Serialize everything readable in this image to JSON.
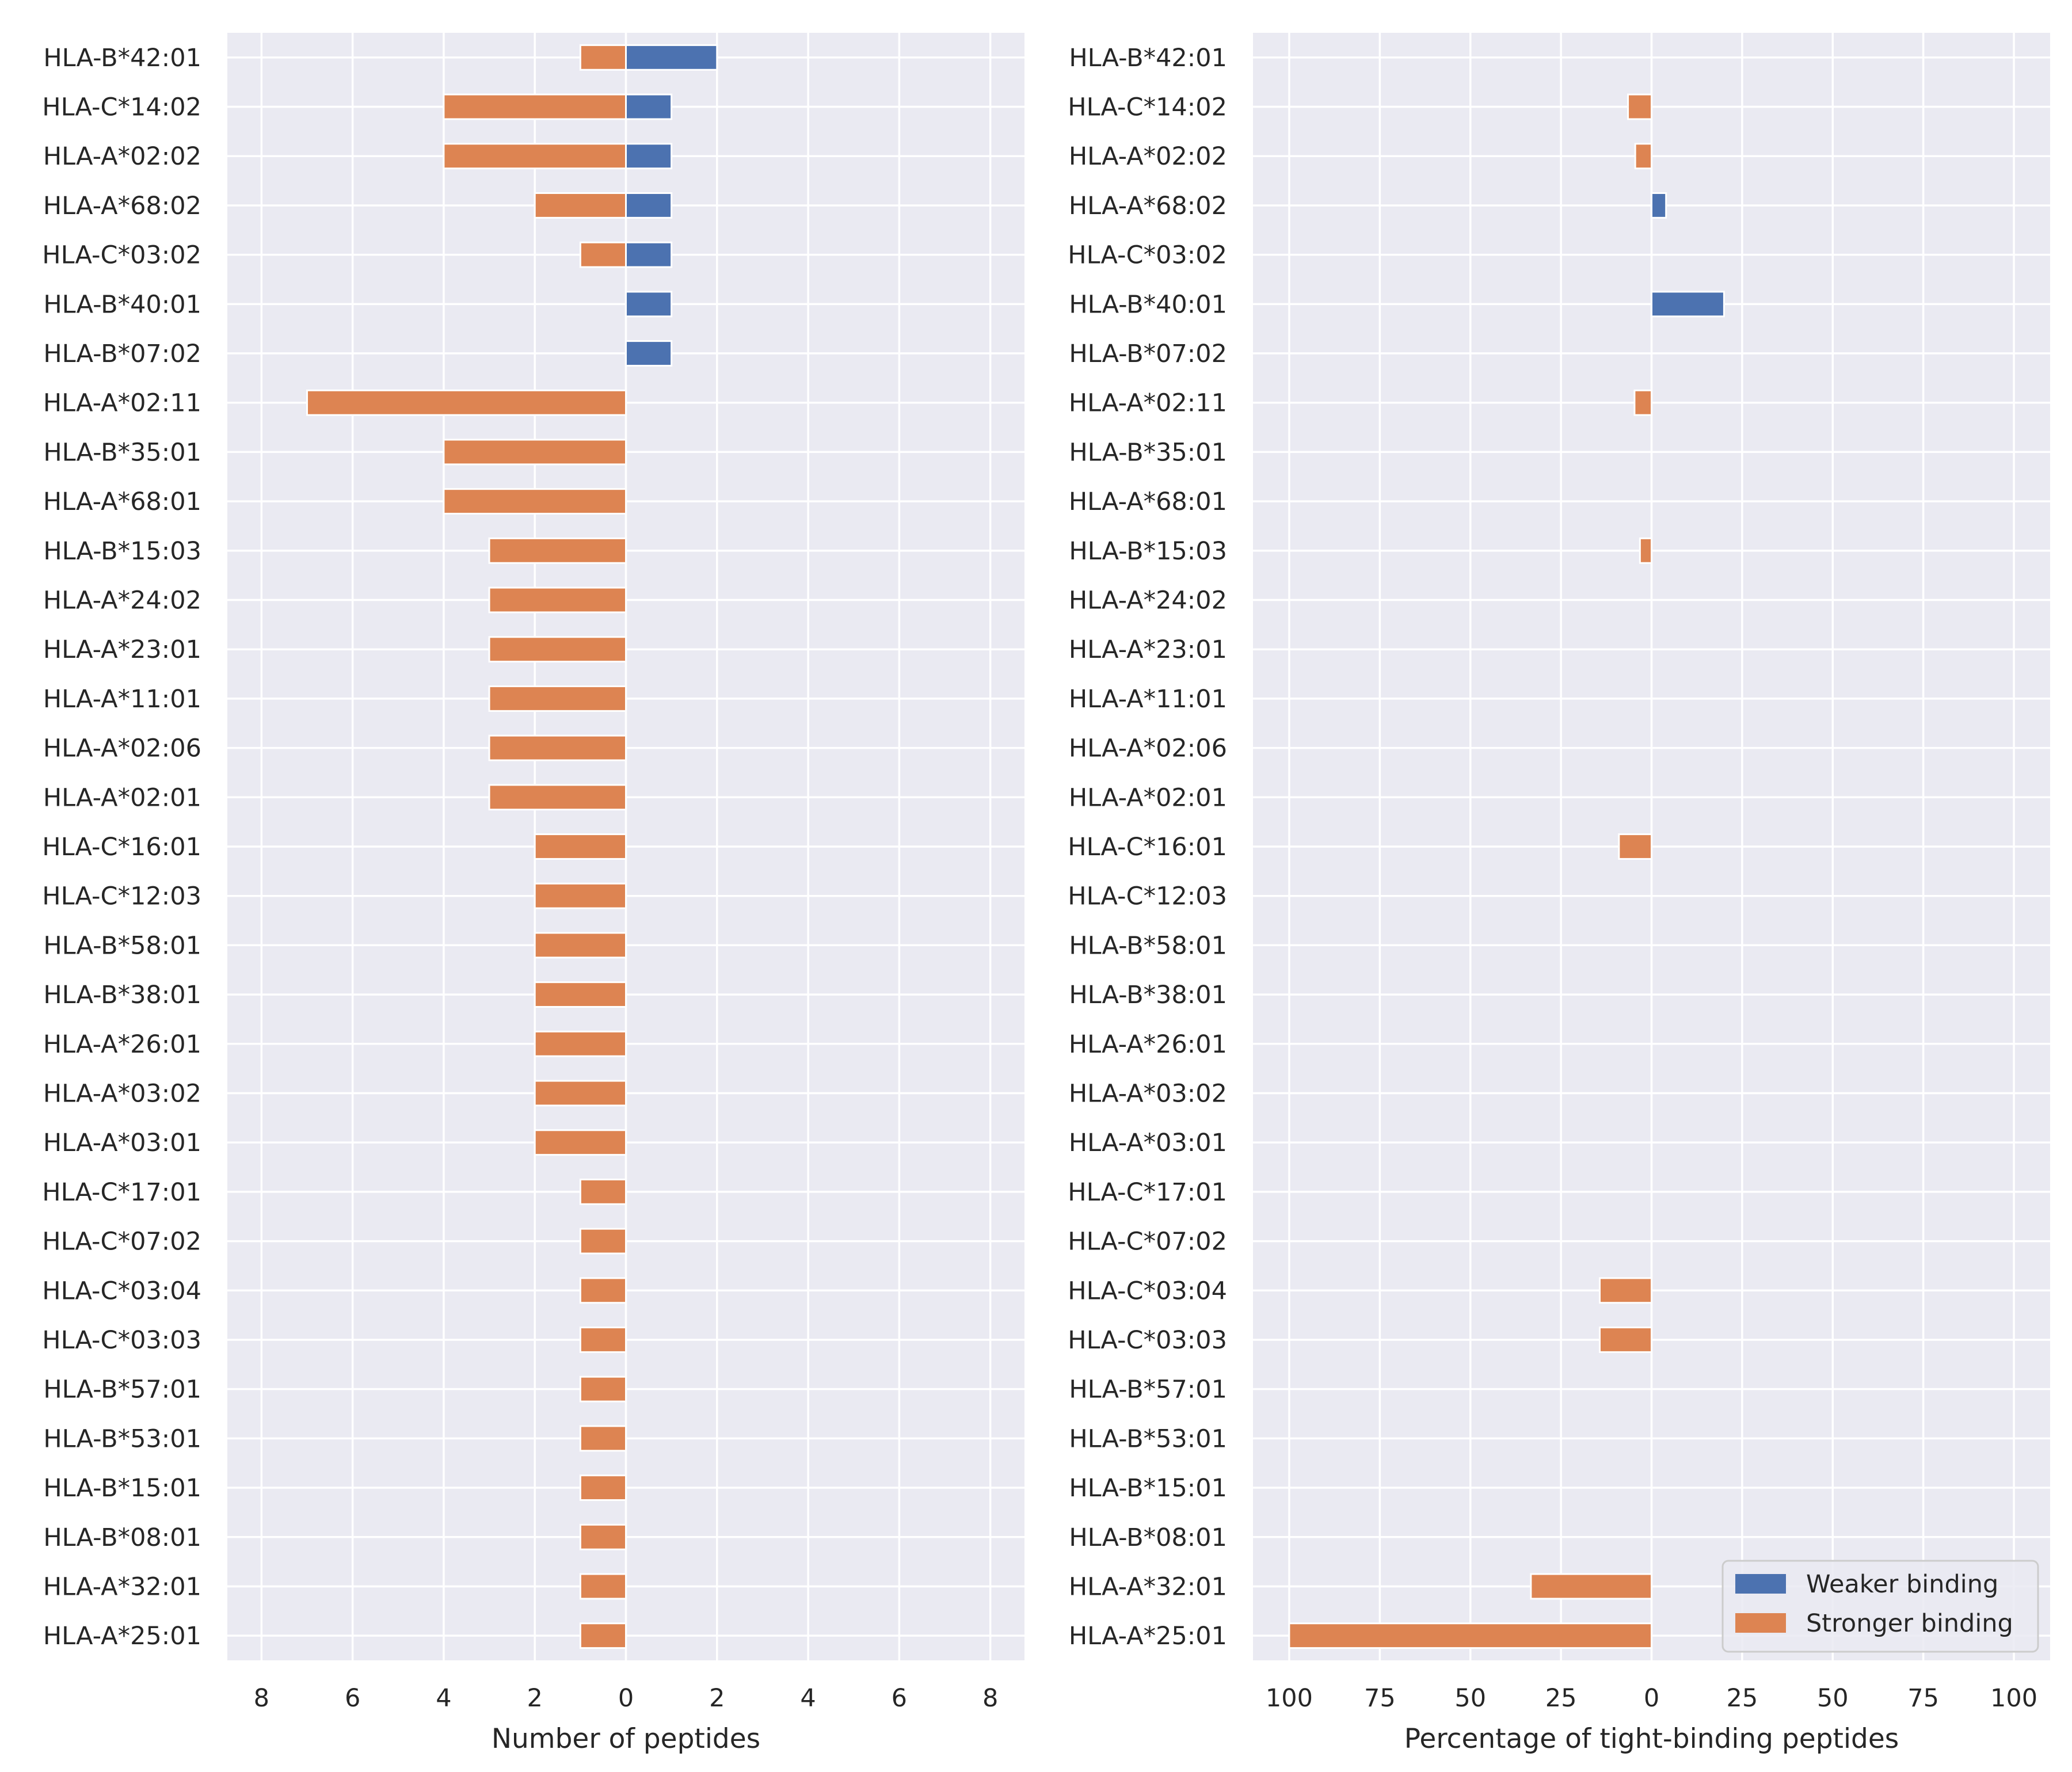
{
  "chart_data": [
    {
      "type": "bar",
      "orientation": "horizontal",
      "layout": "diverging",
      "xlabel": "Number of peptides",
      "xlim": [
        -8.75,
        8.75
      ],
      "xticks": [
        -8,
        -6,
        -4,
        -2,
        0,
        2,
        4,
        6,
        8
      ],
      "xtick_labels": [
        "8",
        "6",
        "4",
        "2",
        "0",
        "2",
        "4",
        "6",
        "8"
      ],
      "categories": [
        "HLA-B*42:01",
        "HLA-C*14:02",
        "HLA-A*02:02",
        "HLA-A*68:02",
        "HLA-C*03:02",
        "HLA-B*40:01",
        "HLA-B*07:02",
        "HLA-A*02:11",
        "HLA-B*35:01",
        "HLA-A*68:01",
        "HLA-B*15:03",
        "HLA-A*24:02",
        "HLA-A*23:01",
        "HLA-A*11:01",
        "HLA-A*02:06",
        "HLA-A*02:01",
        "HLA-C*16:01",
        "HLA-C*12:03",
        "HLA-B*58:01",
        "HLA-B*38:01",
        "HLA-A*26:01",
        "HLA-A*03:02",
        "HLA-A*03:01",
        "HLA-C*17:01",
        "HLA-C*07:02",
        "HLA-C*03:04",
        "HLA-C*03:03",
        "HLA-B*57:01",
        "HLA-B*53:01",
        "HLA-B*15:01",
        "HLA-B*08:01",
        "HLA-A*32:01",
        "HLA-A*25:01"
      ],
      "series": [
        {
          "name": "Weaker binding",
          "direction": "right",
          "color": "#4c72b0",
          "values": [
            2,
            1,
            1,
            1,
            1,
            1,
            1,
            0,
            0,
            0,
            0,
            0,
            0,
            0,
            0,
            0,
            0,
            0,
            0,
            0,
            0,
            0,
            0,
            0,
            0,
            0,
            0,
            0,
            0,
            0,
            0,
            0,
            0
          ]
        },
        {
          "name": "Stronger binding",
          "direction": "left",
          "color": "#dd8452",
          "values": [
            1,
            4,
            4,
            2,
            1,
            0,
            0,
            7,
            4,
            4,
            3,
            3,
            3,
            3,
            3,
            3,
            2,
            2,
            2,
            2,
            2,
            2,
            2,
            1,
            1,
            1,
            1,
            1,
            1,
            1,
            1,
            1,
            1
          ]
        }
      ],
      "grid": true
    },
    {
      "type": "bar",
      "orientation": "horizontal",
      "layout": "diverging",
      "xlabel": "Percentage of tight-binding peptides",
      "xlim": [
        -110,
        110
      ],
      "xticks": [
        -100,
        -75,
        -50,
        -25,
        0,
        25,
        50,
        75,
        100
      ],
      "xtick_labels": [
        "100",
        "75",
        "50",
        "25",
        "0",
        "25",
        "50",
        "75",
        "100"
      ],
      "categories": [
        "HLA-B*42:01",
        "HLA-C*14:02",
        "HLA-A*02:02",
        "HLA-A*68:02",
        "HLA-C*03:02",
        "HLA-B*40:01",
        "HLA-B*07:02",
        "HLA-A*02:11",
        "HLA-B*35:01",
        "HLA-A*68:01",
        "HLA-B*15:03",
        "HLA-A*24:02",
        "HLA-A*23:01",
        "HLA-A*11:01",
        "HLA-A*02:06",
        "HLA-A*02:01",
        "HLA-C*16:01",
        "HLA-C*12:03",
        "HLA-B*58:01",
        "HLA-B*38:01",
        "HLA-A*26:01",
        "HLA-A*03:02",
        "HLA-A*03:01",
        "HLA-C*17:01",
        "HLA-C*07:02",
        "HLA-C*03:04",
        "HLA-C*03:03",
        "HLA-B*57:01",
        "HLA-B*53:01",
        "HLA-B*15:01",
        "HLA-B*08:01",
        "HLA-A*32:01",
        "HLA-A*25:01"
      ],
      "series": [
        {
          "name": "Weaker binding",
          "direction": "right",
          "color": "#4c72b0",
          "values": [
            0,
            0,
            0,
            4,
            0,
            20,
            0,
            0,
            0,
            0,
            0,
            0,
            0,
            0,
            0,
            0,
            0,
            0,
            0,
            0,
            0,
            0,
            0,
            0,
            0,
            0,
            0,
            0,
            0,
            0,
            0,
            0,
            0
          ]
        },
        {
          "name": "Stronger binding",
          "direction": "left",
          "color": "#dd8452",
          "values": [
            0,
            6.5,
            4.5,
            0,
            0,
            0,
            0,
            4.7,
            0,
            0,
            3.2,
            0,
            0,
            0,
            0,
            0,
            9,
            0,
            0,
            0,
            0,
            0,
            0,
            0,
            0,
            14.3,
            14.3,
            0,
            0,
            0,
            0,
            33.3,
            100
          ]
        }
      ],
      "grid": true,
      "legend": {
        "placement": "lower right",
        "entries": [
          "Weaker binding",
          "Stronger binding"
        ]
      }
    }
  ],
  "style": {
    "background": "#ffffff",
    "axes_facecolor": "#eaeaf2",
    "grid_color": "#ffffff",
    "text_color": "#262626"
  }
}
